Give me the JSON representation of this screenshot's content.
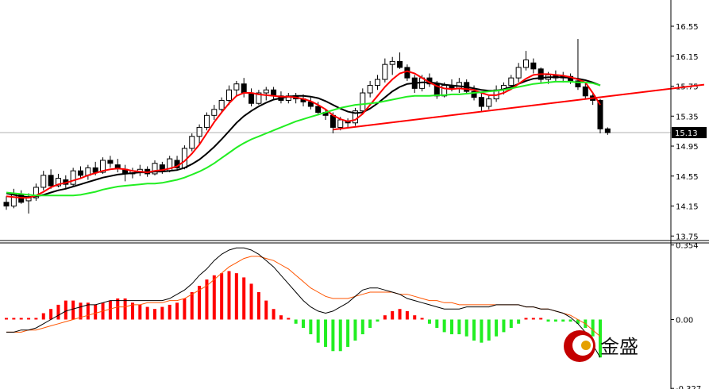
{
  "chart_data": [
    {
      "type": "candlestick",
      "panel": "price",
      "y_ticks": [
        "16.55",
        "16.15",
        "15.75",
        "15.35",
        "14.95",
        "14.55",
        "14.15",
        "13.75"
      ],
      "y_tick_values": [
        16.55,
        16.15,
        15.75,
        15.35,
        14.95,
        14.55,
        14.15,
        13.75
      ],
      "ylim": [
        13.7,
        16.9
      ],
      "current_price": 15.13,
      "current_price_label": "15.13",
      "candles": [
        [
          14.2,
          14.28,
          14.1,
          14.15
        ],
        [
          14.15,
          14.38,
          14.12,
          14.32
        ],
        [
          14.3,
          14.36,
          14.18,
          14.2
        ],
        [
          14.22,
          14.32,
          14.05,
          14.26
        ],
        [
          14.26,
          14.45,
          14.22,
          14.4
        ],
        [
          14.4,
          14.62,
          14.36,
          14.56
        ],
        [
          14.56,
          14.64,
          14.38,
          14.42
        ],
        [
          14.42,
          14.58,
          14.4,
          14.52
        ],
        [
          14.5,
          14.56,
          14.38,
          14.44
        ],
        [
          14.44,
          14.66,
          14.42,
          14.62
        ],
        [
          14.62,
          14.68,
          14.52,
          14.56
        ],
        [
          14.56,
          14.7,
          14.5,
          14.66
        ],
        [
          14.66,
          14.74,
          14.56,
          14.6
        ],
        [
          14.6,
          14.8,
          14.58,
          14.76
        ],
        [
          14.76,
          14.82,
          14.66,
          14.72
        ],
        [
          14.7,
          14.78,
          14.6,
          14.66
        ],
        [
          14.64,
          14.7,
          14.48,
          14.58
        ],
        [
          14.58,
          14.66,
          14.52,
          14.62
        ],
        [
          14.6,
          14.7,
          14.55,
          14.64
        ],
        [
          14.64,
          14.68,
          14.54,
          14.58
        ],
        [
          14.58,
          14.76,
          14.56,
          14.72
        ],
        [
          14.7,
          14.74,
          14.58,
          14.62
        ],
        [
          14.62,
          14.82,
          14.6,
          14.78
        ],
        [
          14.76,
          14.82,
          14.62,
          14.66
        ],
        [
          14.66,
          14.96,
          14.64,
          14.92
        ],
        [
          14.92,
          15.12,
          14.88,
          15.08
        ],
        [
          15.08,
          15.24,
          14.98,
          15.2
        ],
        [
          15.2,
          15.4,
          15.16,
          15.36
        ],
        [
          15.36,
          15.5,
          15.3,
          15.44
        ],
        [
          15.44,
          15.6,
          15.4,
          15.56
        ],
        [
          15.56,
          15.76,
          15.5,
          15.7
        ],
        [
          15.7,
          15.82,
          15.62,
          15.78
        ],
        [
          15.78,
          15.86,
          15.6,
          15.66
        ],
        [
          15.66,
          15.72,
          15.48,
          15.52
        ],
        [
          15.52,
          15.7,
          15.5,
          15.66
        ],
        [
          15.66,
          15.74,
          15.56,
          15.7
        ],
        [
          15.7,
          15.74,
          15.58,
          15.62
        ],
        [
          15.62,
          15.68,
          15.52,
          15.56
        ],
        [
          15.56,
          15.66,
          15.52,
          15.62
        ],
        [
          15.62,
          15.66,
          15.52,
          15.58
        ],
        [
          15.58,
          15.64,
          15.48,
          15.54
        ],
        [
          15.54,
          15.6,
          15.44,
          15.48
        ],
        [
          15.48,
          15.54,
          15.36,
          15.4
        ],
        [
          15.4,
          15.44,
          15.3,
          15.36
        ],
        [
          15.36,
          15.4,
          15.12,
          15.2
        ],
        [
          15.2,
          15.34,
          15.16,
          15.3
        ],
        [
          15.28,
          15.32,
          15.2,
          15.26
        ],
        [
          15.26,
          15.46,
          15.22,
          15.42
        ],
        [
          15.42,
          15.72,
          15.4,
          15.66
        ],
        [
          15.66,
          15.82,
          15.6,
          15.76
        ],
        [
          15.76,
          15.9,
          15.7,
          15.84
        ],
        [
          15.84,
          16.12,
          15.8,
          16.04
        ],
        [
          16.04,
          16.14,
          15.9,
          16.08
        ],
        [
          16.08,
          16.2,
          15.98,
          16.0
        ],
        [
          16.0,
          16.04,
          15.82,
          15.86
        ],
        [
          15.86,
          15.9,
          15.66,
          15.72
        ],
        [
          15.72,
          15.9,
          15.68,
          15.86
        ],
        [
          15.86,
          15.92,
          15.74,
          15.78
        ],
        [
          15.78,
          15.82,
          15.58,
          15.62
        ],
        [
          15.62,
          15.8,
          15.6,
          15.76
        ],
        [
          15.76,
          15.84,
          15.68,
          15.72
        ],
        [
          15.72,
          15.86,
          15.66,
          15.8
        ],
        [
          15.8,
          15.84,
          15.64,
          15.68
        ],
        [
          15.68,
          15.76,
          15.56,
          15.6
        ],
        [
          15.6,
          15.66,
          15.42,
          15.48
        ],
        [
          15.48,
          15.62,
          15.44,
          15.58
        ],
        [
          15.58,
          15.76,
          15.54,
          15.7
        ],
        [
          15.7,
          15.8,
          15.64,
          15.76
        ],
        [
          15.76,
          15.9,
          15.7,
          15.86
        ],
        [
          15.86,
          16.06,
          15.8,
          16.0
        ],
        [
          16.0,
          16.22,
          15.96,
          16.1
        ],
        [
          16.06,
          16.12,
          15.92,
          15.98
        ],
        [
          15.98,
          16.0,
          15.8,
          15.84
        ],
        [
          15.84,
          15.94,
          15.78,
          15.9
        ],
        [
          15.9,
          15.96,
          15.82,
          15.86
        ],
        [
          15.86,
          15.94,
          15.8,
          15.88
        ],
        [
          15.88,
          15.92,
          15.78,
          15.82
        ],
        [
          15.82,
          16.38,
          15.7,
          15.74
        ],
        [
          15.74,
          15.8,
          15.58,
          15.62
        ],
        [
          15.62,
          15.66,
          15.5,
          15.56
        ],
        [
          15.56,
          15.58,
          15.12,
          15.18
        ],
        [
          15.18,
          15.2,
          15.1,
          15.13
        ]
      ],
      "series": [
        {
          "name": "",
          "color": "#000000",
          "values": [
            14.32,
            14.3,
            14.28,
            14.27,
            14.28,
            14.3,
            14.33,
            14.36,
            14.38,
            14.41,
            14.44,
            14.47,
            14.5,
            14.53,
            14.55,
            14.57,
            14.58,
            14.59,
            14.6,
            14.6,
            14.61,
            14.61,
            14.62,
            14.63,
            14.66,
            14.71,
            14.77,
            14.85,
            14.94,
            15.04,
            15.15,
            15.26,
            15.35,
            15.42,
            15.48,
            15.53,
            15.57,
            15.59,
            15.61,
            15.62,
            15.62,
            15.61,
            15.59,
            15.55,
            15.5,
            15.45,
            15.41,
            15.39,
            15.4,
            15.45,
            15.52,
            15.6,
            15.68,
            15.74,
            15.78,
            15.79,
            15.8,
            15.8,
            15.79,
            15.77,
            15.76,
            15.75,
            15.74,
            15.72,
            15.7,
            15.69,
            15.69,
            15.71,
            15.74,
            15.78,
            15.82,
            15.85,
            15.86,
            15.87,
            15.87,
            15.87,
            15.86,
            15.85,
            15.83,
            15.8,
            15.76
          ]
        },
        {
          "name": "",
          "color": "#ff0000",
          "values": [
            14.28,
            14.27,
            14.26,
            14.26,
            14.29,
            14.34,
            14.4,
            14.44,
            14.46,
            14.49,
            14.52,
            14.56,
            14.59,
            14.62,
            14.64,
            14.65,
            14.64,
            14.62,
            14.61,
            14.6,
            14.62,
            14.63,
            14.65,
            14.68,
            14.75,
            14.85,
            14.97,
            15.12,
            15.27,
            15.4,
            15.52,
            15.62,
            15.66,
            15.66,
            15.64,
            15.63,
            15.62,
            15.61,
            15.61,
            15.6,
            15.58,
            15.55,
            15.5,
            15.44,
            15.36,
            15.31,
            15.28,
            15.3,
            15.38,
            15.5,
            15.62,
            15.74,
            15.84,
            15.92,
            15.95,
            15.92,
            15.86,
            15.8,
            15.75,
            15.72,
            15.71,
            15.72,
            15.71,
            15.7,
            15.66,
            15.63,
            15.63,
            15.66,
            15.71,
            15.78,
            15.85,
            15.9,
            15.91,
            15.91,
            15.9,
            15.89,
            15.87,
            15.84,
            15.8,
            15.66,
            15.5
          ]
        },
        {
          "name": "",
          "color": "#22ee22",
          "values": [
            14.33,
            14.32,
            14.31,
            14.3,
            14.29,
            14.29,
            14.29,
            14.29,
            14.29,
            14.29,
            14.3,
            14.32,
            14.34,
            14.37,
            14.39,
            14.41,
            14.42,
            14.43,
            14.44,
            14.45,
            14.45,
            14.46,
            14.48,
            14.5,
            14.53,
            14.57,
            14.61,
            14.66,
            14.72,
            14.79,
            14.86,
            14.93,
            14.99,
            15.04,
            15.08,
            15.12,
            15.16,
            15.2,
            15.24,
            15.28,
            15.31,
            15.34,
            15.37,
            15.4,
            15.43,
            15.46,
            15.48,
            15.5,
            15.51,
            15.52,
            15.53,
            15.55,
            15.57,
            15.59,
            15.61,
            15.62,
            15.62,
            15.62,
            15.63,
            15.63,
            15.64,
            15.64,
            15.65,
            15.66,
            15.67,
            15.68,
            15.69,
            15.7,
            15.72,
            15.74,
            15.76,
            15.78,
            15.79,
            15.8,
            15.81,
            15.81,
            15.81,
            15.8,
            15.8,
            15.79,
            15.76
          ]
        }
      ],
      "trendline": {
        "color": "#ff0000",
        "from": [
          44,
          15.17
        ],
        "to": [
          94,
          15.77
        ]
      }
    },
    {
      "type": "macd",
      "panel": "indicator",
      "y_ticks": [
        "0.354",
        "0.00",
        "-0.327"
      ],
      "y_tick_values": [
        0.354,
        0.0,
        -0.327
      ],
      "ylim": [
        -0.33,
        0.36
      ],
      "histogram": [
        0,
        0,
        0,
        0,
        0,
        0.03,
        0.05,
        0.07,
        0.09,
        0.09,
        0.08,
        0.08,
        0.07,
        0.08,
        0.09,
        0.1,
        0.1,
        0.08,
        0.07,
        0.06,
        0.05,
        0.06,
        0.07,
        0.08,
        0.1,
        0.13,
        0.16,
        0.19,
        0.21,
        0.22,
        0.23,
        0.22,
        0.2,
        0.17,
        0.13,
        0.09,
        0.05,
        0.02,
        0,
        -0.02,
        -0.04,
        -0.07,
        -0.11,
        -0.13,
        -0.15,
        -0.15,
        -0.13,
        -0.1,
        -0.07,
        -0.04,
        -0.01,
        0.02,
        0.04,
        0.05,
        0.04,
        0.02,
        0,
        -0.02,
        -0.04,
        -0.06,
        -0.07,
        -0.07,
        -0.08,
        -0.1,
        -0.11,
        -0.1,
        -0.08,
        -0.06,
        -0.04,
        -0.02,
        0,
        0,
        0,
        -0.01,
        -0.01,
        -0.01,
        -0.01,
        -0.02,
        -0.04,
        -0.08,
        -0.18
      ],
      "macd_values": [
        -0.06,
        -0.06,
        -0.05,
        -0.05,
        -0.04,
        -0.02,
        0.0,
        0.02,
        0.04,
        0.05,
        0.06,
        0.07,
        0.07,
        0.08,
        0.09,
        0.09,
        0.09,
        0.09,
        0.09,
        0.09,
        0.09,
        0.09,
        0.1,
        0.12,
        0.14,
        0.17,
        0.21,
        0.24,
        0.28,
        0.31,
        0.33,
        0.34,
        0.34,
        0.33,
        0.31,
        0.28,
        0.25,
        0.21,
        0.17,
        0.13,
        0.09,
        0.06,
        0.04,
        0.03,
        0.04,
        0.06,
        0.08,
        0.11,
        0.14,
        0.15,
        0.15,
        0.14,
        0.13,
        0.12,
        0.1,
        0.09,
        0.08,
        0.07,
        0.06,
        0.05,
        0.05,
        0.05,
        0.06,
        0.06,
        0.06,
        0.06,
        0.07,
        0.07,
        0.07,
        0.07,
        0.06,
        0.06,
        0.05,
        0.05,
        0.04,
        0.03,
        0.01,
        -0.02,
        -0.06,
        -0.12,
        -0.18
      ],
      "signal_values": [
        -0.06,
        -0.06,
        -0.06,
        -0.05,
        -0.05,
        -0.04,
        -0.03,
        -0.02,
        -0.01,
        0.0,
        0.01,
        0.02,
        0.03,
        0.04,
        0.05,
        0.06,
        0.06,
        0.07,
        0.07,
        0.08,
        0.08,
        0.08,
        0.09,
        0.09,
        0.1,
        0.12,
        0.14,
        0.16,
        0.19,
        0.22,
        0.25,
        0.27,
        0.29,
        0.3,
        0.3,
        0.29,
        0.28,
        0.26,
        0.24,
        0.21,
        0.18,
        0.15,
        0.13,
        0.11,
        0.1,
        0.1,
        0.1,
        0.11,
        0.12,
        0.13,
        0.13,
        0.13,
        0.13,
        0.12,
        0.12,
        0.11,
        0.1,
        0.09,
        0.09,
        0.08,
        0.08,
        0.07,
        0.07,
        0.07,
        0.07,
        0.07,
        0.07,
        0.07,
        0.07,
        0.07,
        0.06,
        0.06,
        0.05,
        0.05,
        0.04,
        0.03,
        0.02,
        0.0,
        -0.02,
        -0.05,
        -0.08
      ],
      "macd_color": "#000000",
      "signal_color": "#ff5500",
      "positive_color": "#ff0000",
      "negative_color": "#22ee22"
    }
  ],
  "logo": {
    "text": "金盛",
    "icon": "jinsheng-logo-icon",
    "color": "#cc0000"
  }
}
